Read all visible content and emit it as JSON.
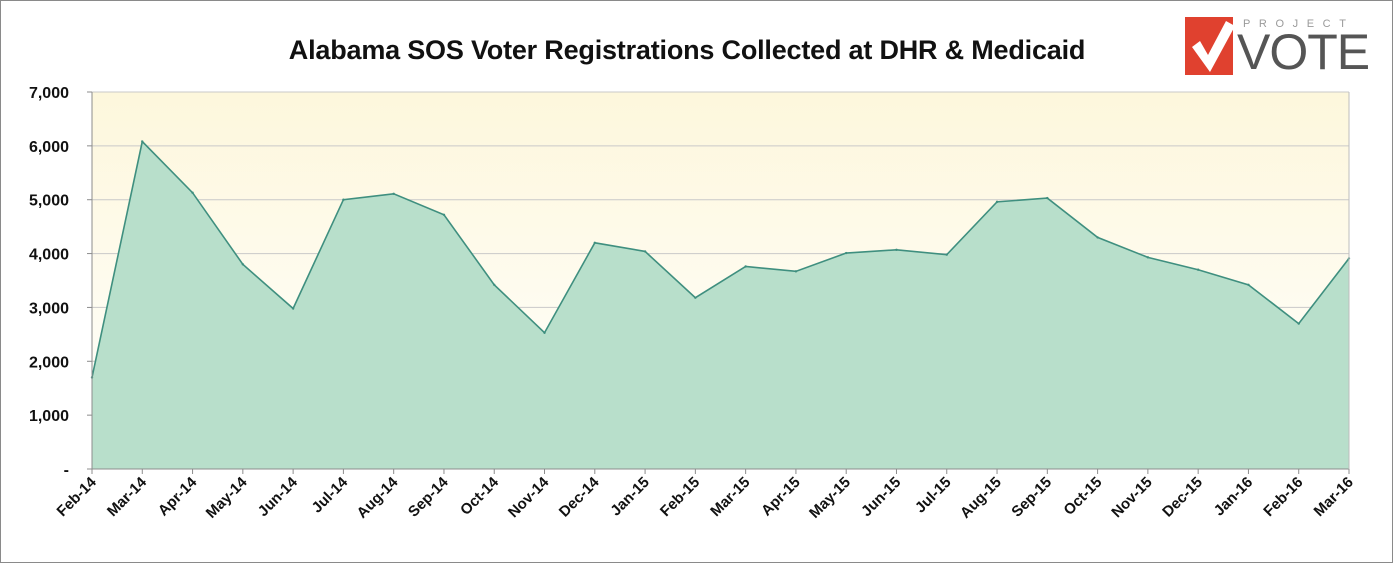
{
  "logo": {
    "top_text": "PROJECT",
    "main_text": "VOTE",
    "brand_red": "#e0412f"
  },
  "chart_data": {
    "type": "area",
    "title": "Alabama SOS Voter Registrations Collected at DHR & Medicaid",
    "xlabel": "",
    "ylabel": "",
    "categories": [
      "Feb-14",
      "Mar-14",
      "Apr-14",
      "May-14",
      "Jun-14",
      "Jul-14",
      "Aug-14",
      "Sep-14",
      "Oct-14",
      "Nov-14",
      "Dec-14",
      "Jan-15",
      "Feb-15",
      "Mar-15",
      "Apr-15",
      "May-15",
      "Jun-15",
      "Jul-15",
      "Aug-15",
      "Sep-15",
      "Oct-15",
      "Nov-15",
      "Dec-15",
      "Jan-16",
      "Feb-16",
      "Mar-16"
    ],
    "values": [
      1700,
      6080,
      5130,
      3800,
      2980,
      5000,
      5110,
      4720,
      3420,
      2530,
      4200,
      4040,
      3180,
      3760,
      3670,
      4010,
      4070,
      3980,
      4960,
      5030,
      4300,
      3930,
      3700,
      3420,
      2700,
      3910
    ],
    "ylim": [
      0,
      7000
    ],
    "yticks": [
      0,
      1000,
      2000,
      3000,
      4000,
      5000,
      6000,
      7000
    ],
    "ytick_labels": [
      "-",
      "1,000",
      "2,000",
      "3,000",
      "4,000",
      "5,000",
      "6,000",
      "7,000"
    ],
    "grid": true,
    "legend": "none",
    "colors": {
      "fill": "#b8dfcb",
      "line": "#3f8f7f",
      "bg_top": "#fdf7dc",
      "bg_bottom": "#ffffff"
    }
  }
}
